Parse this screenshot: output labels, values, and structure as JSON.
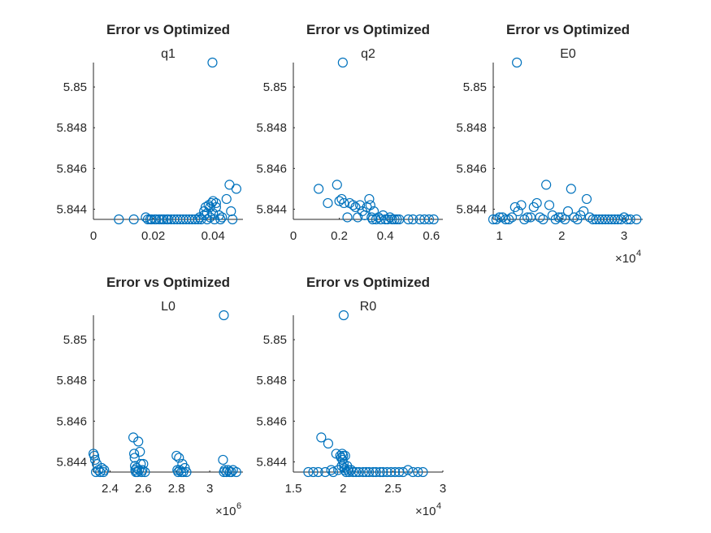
{
  "figure": {
    "background": "#ffffff",
    "marker_color": "#0072BD",
    "text_color": "#262626"
  },
  "chart_data": [
    {
      "type": "scatter",
      "title": "Error vs Optimized",
      "subtitle": "q1",
      "xlim": [
        0,
        0.05
      ],
      "ylim": [
        5.8435,
        5.8512
      ],
      "x_ticks": [
        0,
        0.02,
        0.04
      ],
      "x_tick_labels": [
        "0",
        "0.02",
        "0.04"
      ],
      "y_ticks": [
        5.844,
        5.846,
        5.848,
        5.85
      ],
      "y_tick_labels": [
        "5.844",
        "5.846",
        "5.848",
        "5.85"
      ],
      "x_multiplier": "",
      "points": [
        [
          0.0085,
          5.8435
        ],
        [
          0.0135,
          5.8435
        ],
        [
          0.0175,
          5.8436
        ],
        [
          0.0182,
          5.8435
        ],
        [
          0.019,
          5.8435
        ],
        [
          0.0195,
          5.8435
        ],
        [
          0.0205,
          5.8435
        ],
        [
          0.021,
          5.8435
        ],
        [
          0.022,
          5.8435
        ],
        [
          0.0228,
          5.8435
        ],
        [
          0.0235,
          5.8435
        ],
        [
          0.0245,
          5.8435
        ],
        [
          0.025,
          5.8435
        ],
        [
          0.026,
          5.8435
        ],
        [
          0.027,
          5.8435
        ],
        [
          0.028,
          5.8435
        ],
        [
          0.029,
          5.8435
        ],
        [
          0.03,
          5.8435
        ],
        [
          0.031,
          5.8435
        ],
        [
          0.032,
          5.8435
        ],
        [
          0.033,
          5.8435
        ],
        [
          0.034,
          5.8435
        ],
        [
          0.035,
          5.8435
        ],
        [
          0.0355,
          5.8436
        ],
        [
          0.036,
          5.8435
        ],
        [
          0.037,
          5.8437
        ],
        [
          0.037,
          5.8439
        ],
        [
          0.0375,
          5.8441
        ],
        [
          0.038,
          5.8435
        ],
        [
          0.038,
          5.8438
        ],
        [
          0.0385,
          5.8442
        ],
        [
          0.039,
          5.8441
        ],
        [
          0.039,
          5.8436
        ],
        [
          0.0395,
          5.8443
        ],
        [
          0.04,
          5.8444
        ],
        [
          0.04,
          5.8438
        ],
        [
          0.0405,
          5.8435
        ],
        [
          0.041,
          5.8443
        ],
        [
          0.041,
          5.8441
        ],
        [
          0.042,
          5.8437
        ],
        [
          0.0425,
          5.8435
        ],
        [
          0.043,
          5.8436
        ],
        [
          0.0445,
          5.8445
        ],
        [
          0.0455,
          5.8452
        ],
        [
          0.046,
          5.8439
        ],
        [
          0.0465,
          5.8435
        ],
        [
          0.0478,
          5.845
        ],
        [
          0.0398,
          5.8512
        ]
      ]
    },
    {
      "type": "scatter",
      "title": "Error vs Optimized",
      "subtitle": "q2",
      "xlim": [
        0,
        0.65
      ],
      "ylim": [
        5.8435,
        5.8512
      ],
      "x_ticks": [
        0,
        0.2,
        0.4,
        0.6
      ],
      "x_tick_labels": [
        "0",
        "0.2",
        "0.4",
        "0.6"
      ],
      "y_ticks": [
        5.844,
        5.846,
        5.848,
        5.85
      ],
      "y_tick_labels": [
        "5.844",
        "5.846",
        "5.848",
        "5.85"
      ],
      "x_multiplier": "",
      "points": [
        [
          0.11,
          5.845
        ],
        [
          0.15,
          5.8443
        ],
        [
          0.19,
          5.8452
        ],
        [
          0.2,
          5.8444
        ],
        [
          0.21,
          5.8445
        ],
        [
          0.22,
          5.8443
        ],
        [
          0.235,
          5.8436
        ],
        [
          0.245,
          5.8443
        ],
        [
          0.26,
          5.8442
        ],
        [
          0.27,
          5.8441
        ],
        [
          0.28,
          5.8436
        ],
        [
          0.29,
          5.8442
        ],
        [
          0.3,
          5.8439
        ],
        [
          0.31,
          5.8437
        ],
        [
          0.32,
          5.8441
        ],
        [
          0.33,
          5.8445
        ],
        [
          0.335,
          5.8442
        ],
        [
          0.34,
          5.8436
        ],
        [
          0.345,
          5.8435
        ],
        [
          0.35,
          5.8439
        ],
        [
          0.36,
          5.8435
        ],
        [
          0.37,
          5.8436
        ],
        [
          0.38,
          5.8435
        ],
        [
          0.39,
          5.8437
        ],
        [
          0.4,
          5.8435
        ],
        [
          0.41,
          5.8435
        ],
        [
          0.42,
          5.8436
        ],
        [
          0.43,
          5.8435
        ],
        [
          0.44,
          5.8435
        ],
        [
          0.45,
          5.8435
        ],
        [
          0.46,
          5.8435
        ],
        [
          0.5,
          5.8435
        ],
        [
          0.52,
          5.8435
        ],
        [
          0.55,
          5.8435
        ],
        [
          0.57,
          5.8435
        ],
        [
          0.59,
          5.8435
        ],
        [
          0.61,
          5.8435
        ],
        [
          0.215,
          5.8512
        ]
      ]
    },
    {
      "type": "scatter",
      "title": "Error vs Optimized",
      "subtitle": "E0",
      "xlim": [
        9000,
        33000
      ],
      "ylim": [
        5.8435,
        5.8512
      ],
      "x_ticks": [
        10000,
        20000,
        30000
      ],
      "x_tick_labels": [
        "1",
        "2",
        "3"
      ],
      "y_ticks": [
        5.844,
        5.846,
        5.848,
        5.85
      ],
      "y_tick_labels": [
        "5.844",
        "5.846",
        "5.848",
        "5.85"
      ],
      "x_multiplier": "×10",
      "x_multiplier_exp": "4",
      "points": [
        [
          9000,
          5.8435
        ],
        [
          9500,
          5.8435
        ],
        [
          10000,
          5.8436
        ],
        [
          10500,
          5.8436
        ],
        [
          11000,
          5.8435
        ],
        [
          11500,
          5.8435
        ],
        [
          12000,
          5.8436
        ],
        [
          12500,
          5.8441
        ],
        [
          13000,
          5.8439
        ],
        [
          13500,
          5.8442
        ],
        [
          14000,
          5.8435
        ],
        [
          14500,
          5.8436
        ],
        [
          15000,
          5.8436
        ],
        [
          15500,
          5.8441
        ],
        [
          16000,
          5.8443
        ],
        [
          16500,
          5.8436
        ],
        [
          17000,
          5.8435
        ],
        [
          17500,
          5.8452
        ],
        [
          18000,
          5.8442
        ],
        [
          18500,
          5.8437
        ],
        [
          19000,
          5.8435
        ],
        [
          19500,
          5.8436
        ],
        [
          20000,
          5.8436
        ],
        [
          20500,
          5.8435
        ],
        [
          21000,
          5.8439
        ],
        [
          21500,
          5.845
        ],
        [
          22000,
          5.8436
        ],
        [
          22500,
          5.8435
        ],
        [
          23000,
          5.8437
        ],
        [
          23500,
          5.8439
        ],
        [
          24000,
          5.8445
        ],
        [
          24500,
          5.8436
        ],
        [
          25000,
          5.8435
        ],
        [
          25500,
          5.8435
        ],
        [
          26000,
          5.8435
        ],
        [
          26500,
          5.8435
        ],
        [
          27000,
          5.8435
        ],
        [
          27500,
          5.8435
        ],
        [
          28000,
          5.8435
        ],
        [
          28500,
          5.8435
        ],
        [
          29000,
          5.8435
        ],
        [
          29500,
          5.8435
        ],
        [
          30000,
          5.8436
        ],
        [
          30500,
          5.8435
        ],
        [
          31000,
          5.8435
        ],
        [
          32000,
          5.8435
        ],
        [
          12800,
          5.8512
        ]
      ]
    },
    {
      "type": "scatter",
      "title": "Error vs Optimized",
      "subtitle": "L0",
      "xlim": [
        2300000,
        3200000
      ],
      "ylim": [
        5.8435,
        5.8512
      ],
      "x_ticks": [
        2400000,
        2600000,
        2800000,
        3000000
      ],
      "x_tick_labels": [
        "2.4",
        "2.6",
        "2.8",
        "3"
      ],
      "y_ticks": [
        5.844,
        5.846,
        5.848,
        5.85
      ],
      "y_tick_labels": [
        "5.844",
        "5.846",
        "5.848",
        "5.85"
      ],
      "x_multiplier": "×10",
      "x_multiplier_exp": "6",
      "points": [
        [
          2300000,
          5.8444
        ],
        [
          2305000,
          5.8443
        ],
        [
          2310000,
          5.8441
        ],
        [
          2315000,
          5.8435
        ],
        [
          2320000,
          5.8439
        ],
        [
          2330000,
          5.8436
        ],
        [
          2340000,
          5.8435
        ],
        [
          2350000,
          5.8437
        ],
        [
          2360000,
          5.8435
        ],
        [
          2365000,
          5.8436
        ],
        [
          2540000,
          5.8452
        ],
        [
          2545000,
          5.8444
        ],
        [
          2548000,
          5.8442
        ],
        [
          2550000,
          5.8438
        ],
        [
          2552000,
          5.8436
        ],
        [
          2555000,
          5.8435
        ],
        [
          2560000,
          5.8437
        ],
        [
          2565000,
          5.8435
        ],
        [
          2570000,
          5.845
        ],
        [
          2575000,
          5.8436
        ],
        [
          2580000,
          5.8445
        ],
        [
          2585000,
          5.8439
        ],
        [
          2590000,
          5.8435
        ],
        [
          2595000,
          5.8436
        ],
        [
          2600000,
          5.8439
        ],
        [
          2610000,
          5.8435
        ],
        [
          2800000,
          5.8443
        ],
        [
          2805000,
          5.8436
        ],
        [
          2810000,
          5.8435
        ],
        [
          2815000,
          5.8442
        ],
        [
          2820000,
          5.8436
        ],
        [
          2830000,
          5.8435
        ],
        [
          2835000,
          5.8439
        ],
        [
          2840000,
          5.8435
        ],
        [
          2850000,
          5.8437
        ],
        [
          2860000,
          5.8435
        ],
        [
          3080000,
          5.8441
        ],
        [
          3085000,
          5.8435
        ],
        [
          3090000,
          5.8436
        ],
        [
          3100000,
          5.8435
        ],
        [
          3110000,
          5.8436
        ],
        [
          3120000,
          5.8435
        ],
        [
          3130000,
          5.8435
        ],
        [
          3140000,
          5.8436
        ],
        [
          3160000,
          5.8435
        ],
        [
          3085000,
          5.8512
        ]
      ]
    },
    {
      "type": "scatter",
      "title": "Error vs Optimized",
      "subtitle": "R0",
      "xlim": [
        15000,
        30000
      ],
      "ylim": [
        5.8435,
        5.8512
      ],
      "x_ticks": [
        15000,
        20000,
        25000,
        30000
      ],
      "x_tick_labels": [
        "1.5",
        "2",
        "2.5",
        "3"
      ],
      "y_ticks": [
        5.844,
        5.846,
        5.848,
        5.85
      ],
      "y_tick_labels": [
        "5.844",
        "5.846",
        "5.848",
        "5.85"
      ],
      "x_multiplier": "×10",
      "x_multiplier_exp": "4",
      "points": [
        [
          16500,
          5.8435
        ],
        [
          17000,
          5.8435
        ],
        [
          17500,
          5.8435
        ],
        [
          17800,
          5.8452
        ],
        [
          18200,
          5.8435
        ],
        [
          18500,
          5.8449
        ],
        [
          18800,
          5.8436
        ],
        [
          19000,
          5.8435
        ],
        [
          19300,
          5.8444
        ],
        [
          19500,
          5.8436
        ],
        [
          19700,
          5.8443
        ],
        [
          19800,
          5.8442
        ],
        [
          19850,
          5.8438
        ],
        [
          19900,
          5.8444
        ],
        [
          19950,
          5.8441
        ],
        [
          20000,
          5.8443
        ],
        [
          20050,
          5.8439
        ],
        [
          20100,
          5.8437
        ],
        [
          20150,
          5.8436
        ],
        [
          20200,
          5.8443
        ],
        [
          20300,
          5.8435
        ],
        [
          20400,
          5.8438
        ],
        [
          20500,
          5.8436
        ],
        [
          20600,
          5.8435
        ],
        [
          20800,
          5.8436
        ],
        [
          21000,
          5.8435
        ],
        [
          21300,
          5.8435
        ],
        [
          21600,
          5.8435
        ],
        [
          22000,
          5.8435
        ],
        [
          22300,
          5.8435
        ],
        [
          22600,
          5.8435
        ],
        [
          23000,
          5.8435
        ],
        [
          23300,
          5.8435
        ],
        [
          23700,
          5.8435
        ],
        [
          24000,
          5.8435
        ],
        [
          24400,
          5.8435
        ],
        [
          24800,
          5.8435
        ],
        [
          25200,
          5.8435
        ],
        [
          25600,
          5.8435
        ],
        [
          26000,
          5.8435
        ],
        [
          26500,
          5.8436
        ],
        [
          27000,
          5.8435
        ],
        [
          27500,
          5.8435
        ],
        [
          28000,
          5.8435
        ],
        [
          20050,
          5.8512
        ]
      ]
    }
  ]
}
